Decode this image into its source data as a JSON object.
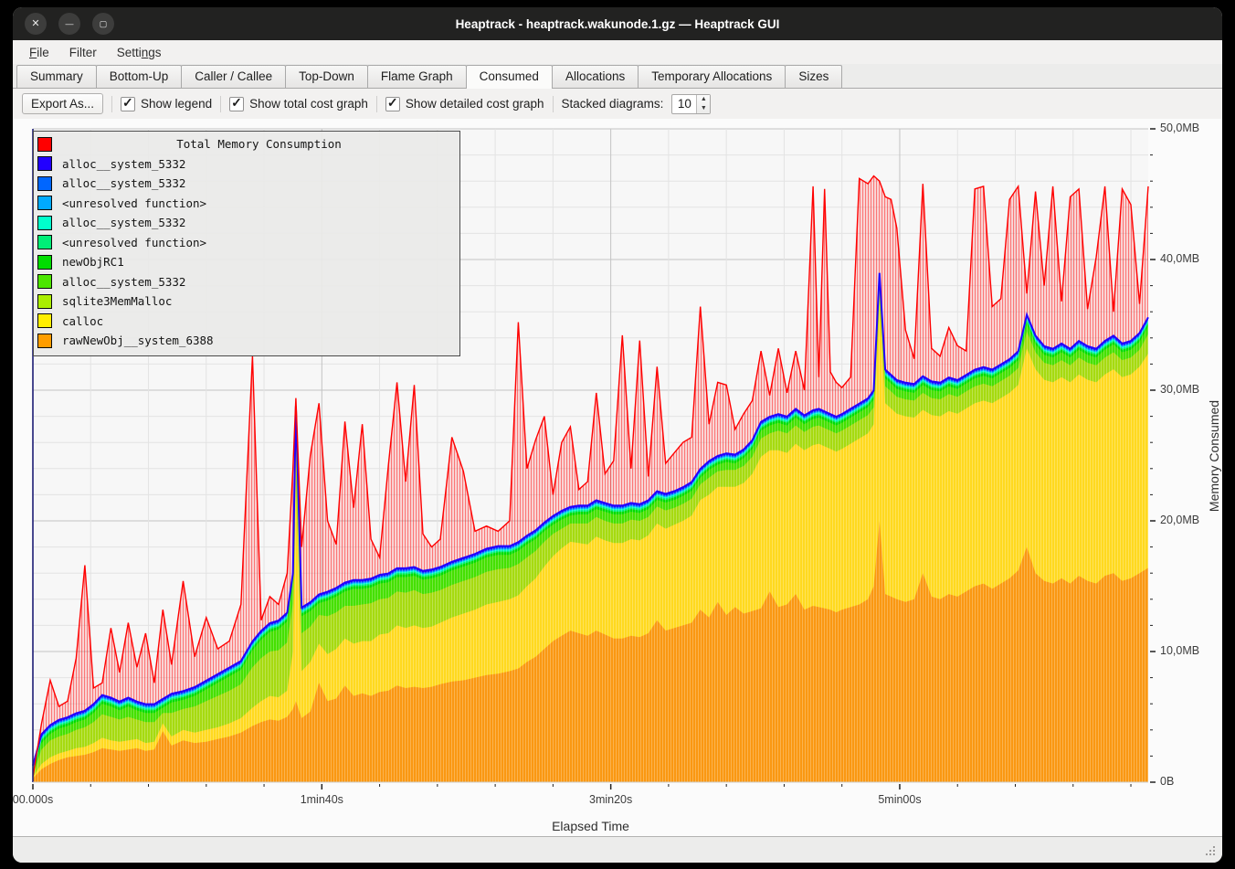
{
  "window": {
    "title": "Heaptrack - heaptrack.wakunode.1.gz — Heaptrack GUI",
    "controls": [
      {
        "name": "close",
        "glyph": "✕"
      },
      {
        "name": "minimize",
        "glyph": "—"
      },
      {
        "name": "maximize",
        "glyph": "▢"
      }
    ]
  },
  "menu": {
    "items": [
      {
        "label": "File",
        "underline": 0
      },
      {
        "label": "Filter",
        "underline": -1
      },
      {
        "label": "Settings",
        "underline": 5
      }
    ]
  },
  "tabs": {
    "active": "Consumed",
    "items": [
      "Summary",
      "Bottom-Up",
      "Caller / Callee",
      "Top-Down",
      "Flame Graph",
      "Consumed",
      "Allocations",
      "Temporary Allocations",
      "Sizes"
    ]
  },
  "toolbar": {
    "export_label": "Export As...",
    "checkboxes": [
      {
        "label": "Show legend",
        "checked": true
      },
      {
        "label": "Show total cost graph",
        "checked": true
      },
      {
        "label": "Show detailed cost graph",
        "checked": true
      }
    ],
    "stacked_label": "Stacked diagrams:",
    "stacked_value": "10"
  },
  "chart_data": {
    "type": "area",
    "stacked": true,
    "xlabel": "Elapsed Time",
    "ylabel": "Memory Consumed",
    "x_unit": "seconds",
    "xlim": [
      0,
      386
    ],
    "ylim_mb": [
      0,
      50
    ],
    "grid": true,
    "legend_position": "top-left",
    "y_ticks": [
      {
        "mb": 0,
        "label": "0B"
      },
      {
        "mb": 10,
        "label": "10,0MB"
      },
      {
        "mb": 20,
        "label": "20,0MB"
      },
      {
        "mb": 30,
        "label": "30,0MB"
      },
      {
        "mb": 40,
        "label": "40,0MB"
      },
      {
        "mb": 50,
        "label": "50,0MB"
      }
    ],
    "x_ticks": [
      {
        "s": 0,
        "label": "00.000s"
      },
      {
        "s": 100,
        "label": "1min40s"
      },
      {
        "s": 200,
        "label": "3min20s"
      },
      {
        "s": 300,
        "label": "5min00s"
      }
    ],
    "minor_x_step_s": 20,
    "minor_y_step_mb": 2,
    "legend_top_to_bottom": [
      {
        "label": "Total Memory Consumption",
        "color": "#ff0000",
        "title_row": true
      },
      {
        "label": "alloc__system_5332",
        "color": "#2200ff"
      },
      {
        "label": "alloc__system_5332",
        "color": "#0066ff"
      },
      {
        "label": "<unresolved function>",
        "color": "#00aaff"
      },
      {
        "label": "alloc__system_5332",
        "color": "#00ffcc"
      },
      {
        "label": "<unresolved function>",
        "color": "#00ee77"
      },
      {
        "label": "newObjRC1",
        "color": "#00dd00"
      },
      {
        "label": "alloc__system_5332",
        "color": "#4ce600"
      },
      {
        "label": "sqlite3MemMalloc",
        "color": "#aaee00"
      },
      {
        "label": "calloc",
        "color": "#ffee00"
      },
      {
        "label": "rawNewObj__system_6388",
        "color": "#ff9d00"
      }
    ],
    "x": [
      0,
      3,
      6,
      9,
      12,
      15,
      18,
      21,
      24,
      27,
      30,
      33,
      36,
      39,
      42,
      45,
      48,
      52,
      56,
      60,
      64,
      68,
      72,
      76,
      79,
      82,
      85,
      88,
      90,
      91,
      93,
      96,
      99,
      102,
      105,
      108,
      111,
      114,
      117,
      120,
      123,
      126,
      129,
      132,
      135,
      138,
      141,
      145,
      149,
      153,
      157,
      161,
      165,
      168,
      171,
      174,
      177,
      180,
      183,
      186,
      189,
      192,
      195,
      198,
      201,
      204,
      207,
      210,
      213,
      216,
      219,
      222,
      225,
      228,
      231,
      234,
      237,
      240,
      243,
      246,
      249,
      252,
      255,
      258,
      261,
      264,
      267,
      270,
      272,
      274,
      276,
      278,
      280,
      283,
      286,
      289,
      291,
      293,
      295,
      297,
      299,
      302,
      305,
      308,
      311,
      314,
      317,
      320,
      323,
      326,
      329,
      332,
      335,
      338,
      341,
      344,
      347,
      350,
      353,
      356,
      359,
      362,
      365,
      368,
      371,
      374,
      377,
      380,
      383,
      386
    ],
    "total_series": {
      "name": "Total Memory Consumption",
      "color": "#ff0000",
      "values": [
        0.4,
        4.5,
        7.8,
        5.8,
        6.2,
        9.5,
        16.6,
        7.2,
        7.6,
        11.8,
        8.4,
        12.2,
        8.8,
        11.4,
        7.6,
        13.2,
        9.0,
        15.4,
        9.6,
        12.6,
        10.2,
        10.8,
        13.6,
        32.6,
        12.4,
        14.2,
        13.6,
        16.0,
        24.0,
        29.4,
        18.0,
        25.0,
        29.0,
        20.0,
        18.2,
        27.6,
        21.0,
        27.4,
        18.6,
        17.2,
        24.2,
        30.6,
        23.0,
        30.4,
        19.0,
        18.0,
        18.6,
        26.4,
        23.8,
        19.2,
        19.6,
        19.2,
        20.0,
        35.2,
        24.0,
        26.2,
        28.0,
        22.0,
        26.0,
        27.2,
        22.4,
        23.0,
        29.8,
        23.6,
        24.6,
        34.2,
        24.0,
        33.8,
        23.4,
        31.8,
        24.4,
        25.2,
        26.0,
        26.4,
        36.4,
        27.4,
        30.6,
        30.4,
        27.0,
        28.2,
        29.2,
        33.0,
        29.6,
        33.2,
        29.8,
        33.0,
        30.0,
        45.6,
        31.0,
        45.4,
        31.4,
        30.6,
        30.2,
        31.0,
        46.2,
        45.8,
        46.4,
        46.0,
        44.8,
        44.6,
        42.4,
        34.6,
        32.4,
        45.8,
        33.2,
        32.6,
        34.8,
        33.4,
        33.0,
        45.4,
        45.6,
        36.4,
        37.0,
        44.6,
        45.6,
        37.4,
        45.2,
        38.0,
        45.6,
        36.8,
        44.8,
        45.4,
        36.2,
        40.2,
        45.6,
        36.0,
        45.4,
        44.2,
        36.6,
        45.6
      ]
    },
    "stacked_series_bottom_to_top": [
      {
        "name": "rawNewObj__system_6388",
        "color": "#fa9812",
        "values": [
          0.3,
          1.0,
          1.4,
          1.7,
          1.9,
          2.0,
          2.1,
          2.3,
          2.6,
          2.5,
          2.4,
          2.5,
          2.6,
          2.4,
          2.5,
          3.9,
          2.8,
          3.2,
          3.0,
          3.1,
          3.3,
          3.5,
          3.8,
          4.3,
          4.6,
          4.8,
          4.7,
          5.0,
          5.6,
          6.2,
          4.9,
          5.4,
          7.6,
          6.2,
          6.4,
          7.4,
          6.6,
          6.8,
          6.6,
          6.9,
          7.0,
          7.4,
          7.2,
          7.3,
          7.2,
          7.3,
          7.5,
          7.7,
          7.8,
          8.0,
          8.2,
          8.3,
          8.5,
          8.7,
          9.2,
          9.6,
          10.2,
          10.8,
          11.2,
          11.6,
          11.4,
          11.2,
          11.6,
          11.3,
          11.0,
          11.0,
          11.2,
          11.1,
          11.4,
          12.4,
          11.6,
          11.8,
          12.0,
          12.2,
          13.2,
          12.6,
          13.8,
          12.8,
          13.4,
          12.9,
          13.1,
          13.3,
          14.6,
          13.4,
          13.6,
          14.4,
          13.2,
          13.5,
          13.4,
          13.3,
          13.2,
          13.0,
          13.2,
          13.4,
          13.6,
          14.0,
          15.0,
          20.0,
          14.4,
          14.2,
          14.0,
          13.8,
          14.0,
          16.0,
          14.2,
          14.0,
          14.4,
          14.2,
          14.6,
          15.0,
          15.2,
          14.8,
          15.2,
          15.6,
          16.2,
          18.0,
          16.0,
          15.4,
          15.2,
          15.6,
          15.2,
          15.8,
          15.4,
          15.2,
          15.8,
          16.0,
          15.4,
          15.6,
          16.0,
          16.4
        ]
      },
      {
        "name": "calloc",
        "color": "#ffd91f",
        "values": [
          0.1,
          0.4,
          0.5,
          0.5,
          0.5,
          0.6,
          0.6,
          0.7,
          0.8,
          0.7,
          0.7,
          0.7,
          0.7,
          0.6,
          0.6,
          0.6,
          0.7,
          0.8,
          0.8,
          0.9,
          0.9,
          1.0,
          1.1,
          1.4,
          1.6,
          1.8,
          1.8,
          2.0,
          4.4,
          16.6,
          3.6,
          3.8,
          3.0,
          3.6,
          3.8,
          3.6,
          4.0,
          4.0,
          4.2,
          4.4,
          4.4,
          4.6,
          4.6,
          4.7,
          4.6,
          4.6,
          4.7,
          4.9,
          5.1,
          5.2,
          5.4,
          5.5,
          5.5,
          5.6,
          5.8,
          6.0,
          6.3,
          6.5,
          6.7,
          6.8,
          6.9,
          7.0,
          7.2,
          7.2,
          7.3,
          7.3,
          7.4,
          7.4,
          7.5,
          7.4,
          7.8,
          7.9,
          8.0,
          8.2,
          8.4,
          9.4,
          8.8,
          9.8,
          9.2,
          10.0,
          10.5,
          11.6,
          10.8,
          12.0,
          11.6,
          11.5,
          12.2,
          12.3,
          12.5,
          12.4,
          12.3,
          12.3,
          12.3,
          12.5,
          12.7,
          12.7,
          12.4,
          16.4,
          14.6,
          14.4,
          14.2,
          14.2,
          13.9,
          12.5,
          13.9,
          14.0,
          14.0,
          14.0,
          14.0,
          14.0,
          14.0,
          14.2,
          14.2,
          14.2,
          14.2,
          15.2,
          15.6,
          15.4,
          15.4,
          15.4,
          15.4,
          15.4,
          15.4,
          15.4,
          15.4,
          15.6,
          15.6,
          15.6,
          15.8,
          16.4
        ]
      },
      {
        "name": "sqlite3MemMalloc",
        "color": "#a6da10",
        "values": [
          0.1,
          1.1,
          1.3,
          1.3,
          1.3,
          1.4,
          1.5,
          1.6,
          1.8,
          1.8,
          1.7,
          1.8,
          1.5,
          1.6,
          1.5,
          0.8,
          1.8,
          1.6,
          2.0,
          2.2,
          2.4,
          2.5,
          2.6,
          3.1,
          3.3,
          3.4,
          3.6,
          3.7,
          3.7,
          3.7,
          2.9,
          2.7,
          2.2,
          2.9,
          2.8,
          2.5,
          2.9,
          2.8,
          2.9,
          2.7,
          2.7,
          2.6,
          2.7,
          2.7,
          2.6,
          2.6,
          2.5,
          2.5,
          2.5,
          2.5,
          2.5,
          2.5,
          2.4,
          2.4,
          2.2,
          2.1,
          1.9,
          1.7,
          1.5,
          1.4,
          1.5,
          1.6,
          1.5,
          1.5,
          1.5,
          1.5,
          1.5,
          1.5,
          1.4,
          1.3,
          1.4,
          1.3,
          1.3,
          1.3,
          1.2,
          1.3,
          1.2,
          1.3,
          1.3,
          1.3,
          1.3,
          1.4,
          1.3,
          1.5,
          1.5,
          1.4,
          1.4,
          1.4,
          1.4,
          1.4,
          1.4,
          1.4,
          1.4,
          1.4,
          1.4,
          1.4,
          1.3,
          1.3,
          1.3,
          1.3,
          1.3,
          1.3,
          1.3,
          1.3,
          1.3,
          1.3,
          1.3,
          1.3,
          1.3,
          1.3,
          1.3,
          1.3,
          1.3,
          1.3,
          1.3,
          1.3,
          1.3,
          1.3,
          1.3,
          1.3,
          1.3,
          1.3,
          1.3,
          1.3,
          1.3,
          1.3,
          1.3,
          1.3,
          1.3,
          1.5
        ]
      },
      {
        "name": "alloc__system_5332",
        "color": "#45e000",
        "values": [
          0.1,
          0.5,
          0.5,
          0.6,
          0.6,
          0.6,
          0.6,
          0.7,
          0.8,
          0.8,
          0.7,
          0.8,
          0.7,
          0.7,
          0.7,
          0.4,
          0.8,
          0.7,
          0.8,
          0.9,
          1.0,
          1.1,
          1.1,
          1.3,
          1.4,
          1.5,
          1.6,
          1.6,
          1.6,
          1.6,
          1.3,
          1.2,
          0.9,
          1.2,
          1.2,
          1.1,
          1.3,
          1.2,
          1.2,
          1.2,
          1.2,
          1.1,
          1.2,
          1.1,
          1.1,
          1.1,
          1.1,
          1.1,
          1.1,
          1.1,
          1.1,
          1.1,
          1.0,
          1.0,
          1.0,
          0.9,
          0.8,
          0.7,
          0.7,
          0.6,
          0.7,
          0.7,
          0.6,
          0.7,
          0.7,
          0.7,
          0.6,
          0.6,
          0.6,
          0.5,
          0.6,
          0.6,
          0.6,
          0.6,
          0.5,
          0.6,
          0.5,
          0.6,
          0.5,
          0.6,
          0.6,
          0.6,
          0.6,
          0.6,
          0.6,
          0.6,
          0.6,
          0.6,
          0.6,
          0.6,
          0.6,
          0.6,
          0.6,
          0.6,
          0.6,
          0.6,
          0.6,
          0.6,
          0.6,
          0.6,
          0.6,
          0.6,
          0.6,
          0.6,
          0.6,
          0.6,
          0.6,
          0.6,
          0.6,
          0.6,
          0.6,
          0.6,
          0.6,
          0.6,
          0.6,
          0.6,
          0.6,
          0.6,
          0.6,
          0.6,
          0.6,
          0.6,
          0.6,
          0.6,
          0.6,
          0.6,
          0.6,
          0.6,
          0.6,
          0.6
        ]
      },
      {
        "name": "newObjRC1",
        "color": "#00dd00",
        "values": 0.2
      },
      {
        "name": "<unresolved function>",
        "color": "#00ee77",
        "values": 0.12
      },
      {
        "name": "alloc__system_5332",
        "color": "#00ffcc",
        "values": 0.08
      },
      {
        "name": "<unresolved function>",
        "color": "#00aaff",
        "values": 0.07
      },
      {
        "name": "alloc__system_5332",
        "color": "#0066ff",
        "values": 0.08
      },
      {
        "name": "alloc__system_5332",
        "color": "#2200ff",
        "values": 0.12
      }
    ]
  }
}
